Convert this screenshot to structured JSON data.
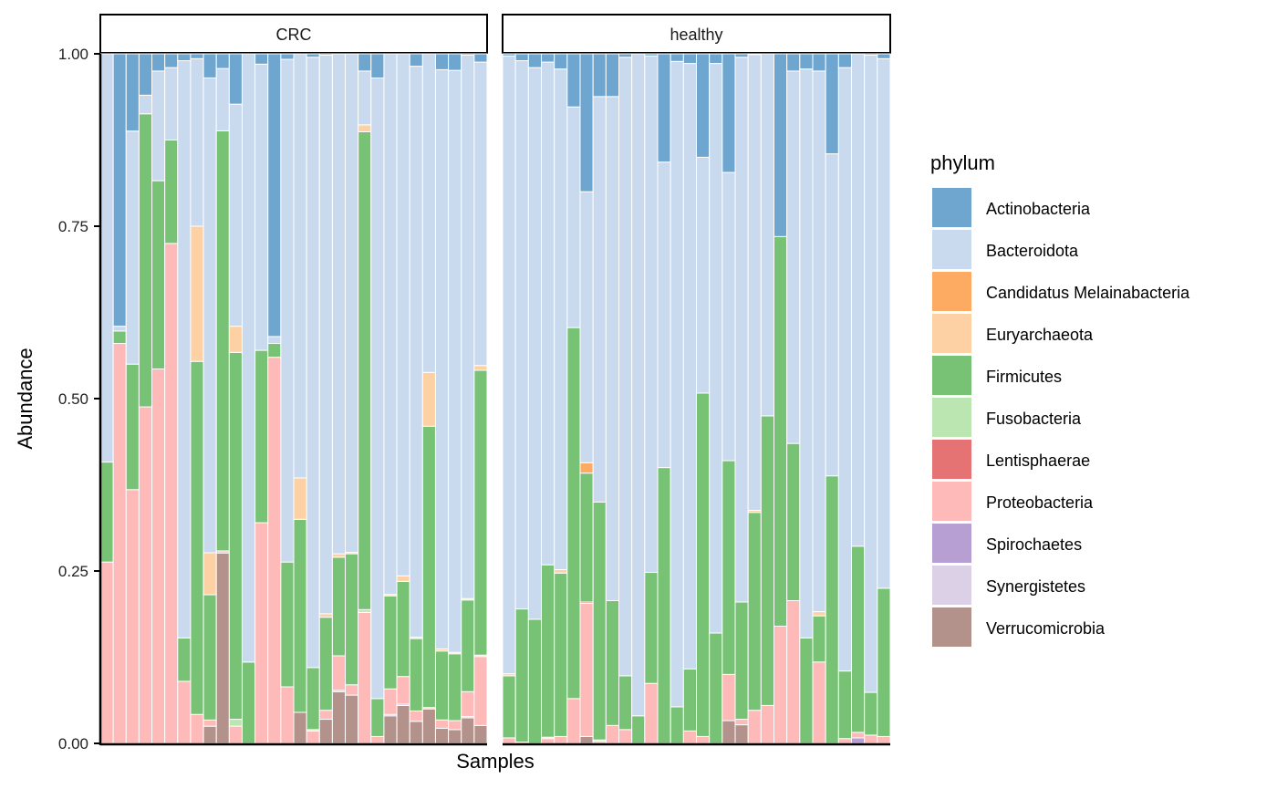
{
  "chart_data": {
    "type": "bar",
    "stacked": true,
    "xlabel": "Samples",
    "ylabel": "Abundance",
    "ylim": [
      0,
      1
    ],
    "yticks": [
      "0.00",
      "0.25",
      "0.50",
      "0.75",
      "1.00"
    ],
    "ytick_values": [
      0,
      0.25,
      0.5,
      0.75,
      1.0
    ],
    "legend": {
      "title": "phylum",
      "position": "right",
      "entries": [
        {
          "name": "Actinobacteria",
          "color": "#6FA6CF"
        },
        {
          "name": "Bacteroidota",
          "color": "#C9D9EE"
        },
        {
          "name": "Candidatus Melainabacteria",
          "color": "#FDAB62"
        },
        {
          "name": "Euryarchaeota",
          "color": "#FDD1A4"
        },
        {
          "name": "Firmicutes",
          "color": "#78C276"
        },
        {
          "name": "Fusobacteria",
          "color": "#BBE6B2"
        },
        {
          "name": "Lentisphaerae",
          "color": "#E57373"
        },
        {
          "name": "Proteobacteria",
          "color": "#FEB9B9"
        },
        {
          "name": "Spirochaetes",
          "color": "#B79ED3"
        },
        {
          "name": "Synergistetes",
          "color": "#DCD0E6"
        },
        {
          "name": "Verrucomicrobia",
          "color": "#B3928C"
        }
      ]
    },
    "stack_order_bottom_to_top": [
      "Verrucomicrobia",
      "Synergistetes",
      "Spirochaetes",
      "Proteobacteria",
      "Lentisphaerae",
      "Fusobacteria",
      "Firmicutes",
      "Euryarchaeota",
      "Candidatus Melainabacteria",
      "Bacteroidota",
      "Actinobacteria"
    ],
    "facets": [
      {
        "label": "CRC",
        "samples": [
          {
            "Proteobacteria": 0.263,
            "Firmicutes": 0.145,
            "Bacteroidota": 0.592,
            "Actinobacteria": 0.0
          },
          {
            "Proteobacteria": 0.58,
            "Firmicutes": 0.018,
            "Bacteroidota": 0.007,
            "Actinobacteria": 0.395
          },
          {
            "Proteobacteria": 0.368,
            "Firmicutes": 0.182,
            "Bacteroidota": 0.338,
            "Actinobacteria": 0.112
          },
          {
            "Proteobacteria": 0.488,
            "Firmicutes": 0.425,
            "Bacteroidota": 0.027,
            "Actinobacteria": 0.06
          },
          {
            "Proteobacteria": 0.543,
            "Firmicutes": 0.273,
            "Bacteroidota": 0.159,
            "Actinobacteria": 0.025
          },
          {
            "Proteobacteria": 0.725,
            "Firmicutes": 0.15,
            "Bacteroidota": 0.105,
            "Actinobacteria": 0.02
          },
          {
            "Proteobacteria": 0.09,
            "Firmicutes": 0.063,
            "Bacteroidota": 0.837,
            "Actinobacteria": 0.01
          },
          {
            "Proteobacteria": 0.042,
            "Firmicutes": 0.512,
            "Euryarchaeota": 0.196,
            "Bacteroidota": 0.243,
            "Actinobacteria": 0.007
          },
          {
            "Verrucomicrobia": 0.025,
            "Proteobacteria": 0.009,
            "Firmicutes": 0.182,
            "Euryarchaeota": 0.061,
            "Bacteroidota": 0.69,
            "Actinobacteria": 0.035
          },
          {
            "Verrucomicrobia": 0.272,
            "Proteobacteria": 0.003,
            "Firmicutes": 0.6,
            "Bacteroidota": 0.089,
            "Actinobacteria": 0.021
          },
          {
            "Proteobacteria": 0.025,
            "Fusobacteria": 0.01,
            "Firmicutes": 0.532,
            "Euryarchaeota": 0.038,
            "Bacteroidota": 0.322,
            "Actinobacteria": 0.073
          },
          {
            "Firmicutes": 0.118,
            "Bacteroidota": 0.882,
            "Actinobacteria": 0.0
          },
          {
            "Proteobacteria": 0.32,
            "Firmicutes": 0.25,
            "Bacteroidota": 0.415,
            "Actinobacteria": 0.015
          },
          {
            "Proteobacteria": 0.56,
            "Firmicutes": 0.02,
            "Bacteroidota": 0.01,
            "Actinobacteria": 0.41
          },
          {
            "Proteobacteria": 0.082,
            "Firmicutes": 0.181,
            "Bacteroidota": 0.729,
            "Actinobacteria": 0.008
          },
          {
            "Verrucomicrobia": 0.045,
            "Firmicutes": 0.28,
            "Euryarchaeota": 0.06,
            "Bacteroidota": 0.615,
            "Actinobacteria": 0.0
          },
          {
            "Proteobacteria": 0.018,
            "Fusobacteria": 0.002,
            "Firmicutes": 0.09,
            "Bacteroidota": 0.885,
            "Actinobacteria": 0.005
          },
          {
            "Verrucomicrobia": 0.035,
            "Proteobacteria": 0.013,
            "Firmicutes": 0.135,
            "Euryarchaeota": 0.005,
            "Bacteroidota": 0.81,
            "Actinobacteria": 0.002
          },
          {
            "Verrucomicrobia": 0.075,
            "Spirochaetes": 0.002,
            "Proteobacteria": 0.05,
            "Firmicutes": 0.143,
            "Euryarchaeota": 0.005,
            "Bacteroidota": 0.725,
            "Actinobacteria": 0.0
          },
          {
            "Verrucomicrobia": 0.07,
            "Proteobacteria": 0.015,
            "Firmicutes": 0.19,
            "Euryarchaeota": 0.002,
            "Bacteroidota": 0.723,
            "Actinobacteria": 0.0
          },
          {
            "Proteobacteria": 0.19,
            "Fusobacteria": 0.004,
            "Firmicutes": 0.693,
            "Euryarchaeota": 0.01,
            "Bacteroidota": 0.078,
            "Actinobacteria": 0.025
          },
          {
            "Proteobacteria": 0.01,
            "Firmicutes": 0.055,
            "Bacteroidota": 0.9,
            "Actinobacteria": 0.035
          },
          {
            "Verrucomicrobia": 0.04,
            "Spirochaetes": 0.002,
            "Proteobacteria": 0.037,
            "Firmicutes": 0.135,
            "Euryarchaeota": 0.002,
            "Bacteroidota": 0.784,
            "Actinobacteria": 0.0
          },
          {
            "Verrucomicrobia": 0.055,
            "Spirochaetes": 0.002,
            "Proteobacteria": 0.04,
            "Firmicutes": 0.138,
            "Euryarchaeota": 0.008,
            "Bacteroidota": 0.757,
            "Actinobacteria": 0.0
          },
          {
            "Verrucomicrobia": 0.032,
            "Proteobacteria": 0.015,
            "Firmicutes": 0.105,
            "Euryarchaeota": 0.002,
            "Bacteroidota": 0.828,
            "Actinobacteria": 0.018
          },
          {
            "Verrucomicrobia": 0.05,
            "Proteobacteria": 0.002,
            "Firmicutes": 0.408,
            "Euryarchaeota": 0.078,
            "Bacteroidota": 0.462,
            "Actinobacteria": 0.0
          },
          {
            "Verrucomicrobia": 0.022,
            "Proteobacteria": 0.012,
            "Firmicutes": 0.1,
            "Euryarchaeota": 0.003,
            "Bacteroidota": 0.84,
            "Actinobacteria": 0.023
          },
          {
            "Verrucomicrobia": 0.02,
            "Proteobacteria": 0.013,
            "Firmicutes": 0.097,
            "Euryarchaeota": 0.002,
            "Bacteroidota": 0.844,
            "Actinobacteria": 0.024
          },
          {
            "Verrucomicrobia": 0.037,
            "Synergistetes": 0.002,
            "Proteobacteria": 0.036,
            "Firmicutes": 0.133,
            "Euryarchaeota": 0.002,
            "Bacteroidota": 0.788,
            "Actinobacteria": 0.002
          },
          {
            "Verrucomicrobia": 0.026,
            "Proteobacteria": 0.1,
            "Fusobacteria": 0.002,
            "Firmicutes": 0.413,
            "Euryarchaeota": 0.007,
            "Bacteroidota": 0.44,
            "Actinobacteria": 0.012
          }
        ]
      },
      {
        "label": "healthy",
        "samples": [
          {
            "Proteobacteria": 0.008,
            "Firmicutes": 0.09,
            "Euryarchaeota": 0.003,
            "Bacteroidota": 0.896,
            "Actinobacteria": 0.003
          },
          {
            "Proteobacteria": 0.002,
            "Firmicutes": 0.193,
            "Bacteroidota": 0.795,
            "Actinobacteria": 0.01
          },
          {
            "Firmicutes": 0.18,
            "Bacteroidota": 0.8,
            "Actinobacteria": 0.02
          },
          {
            "Proteobacteria": 0.007,
            "Fusobacteria": 0.002,
            "Firmicutes": 0.25,
            "Bacteroidota": 0.729,
            "Actinobacteria": 0.012
          },
          {
            "Proteobacteria": 0.01,
            "Firmicutes": 0.237,
            "Euryarchaeota": 0.005,
            "Bacteroidota": 0.726,
            "Actinobacteria": 0.022
          },
          {
            "Proteobacteria": 0.065,
            "Firmicutes": 0.538,
            "Bacteroidota": 0.32,
            "Actinobacteria": 0.077
          },
          {
            "Verrucomicrobia": 0.01,
            "Proteobacteria": 0.193,
            "Lentisphaerae": 0.002,
            "Firmicutes": 0.187,
            "Candidatus Melainabacteria": 0.015,
            "Bacteroidota": 0.393,
            "Actinobacteria": 0.2
          },
          {
            "Proteobacteria": 0.003,
            "Fusobacteria": 0.002,
            "Firmicutes": 0.345,
            "Bacteroidota": 0.588,
            "Actinobacteria": 0.062
          },
          {
            "Proteobacteria": 0.026,
            "Firmicutes": 0.181,
            "Bacteroidota": 0.731,
            "Actinobacteria": 0.062
          },
          {
            "Proteobacteria": 0.02,
            "Firmicutes": 0.078,
            "Bacteroidota": 0.897,
            "Actinobacteria": 0.005
          },
          {
            "Firmicutes": 0.04,
            "Bacteroidota": 0.96,
            "Actinobacteria": 0.0
          },
          {
            "Proteobacteria": 0.087,
            "Firmicutes": 0.161,
            "Bacteroidota": 0.749,
            "Actinobacteria": 0.003
          },
          {
            "Firmicutes": 0.4,
            "Bacteroidota": 0.443,
            "Actinobacteria": 0.157
          },
          {
            "Firmicutes": 0.053,
            "Bacteroidota": 0.936,
            "Actinobacteria": 0.011
          },
          {
            "Proteobacteria": 0.018,
            "Firmicutes": 0.09,
            "Bacteroidota": 0.878,
            "Actinobacteria": 0.014
          },
          {
            "Proteobacteria": 0.01,
            "Firmicutes": 0.498,
            "Bacteroidota": 0.342,
            "Actinobacteria": 0.15
          },
          {
            "Firmicutes": 0.16,
            "Bacteroidota": 0.826,
            "Actinobacteria": 0.014
          },
          {
            "Verrucomicrobia": 0.033,
            "Proteobacteria": 0.067,
            "Firmicutes": 0.31,
            "Bacteroidota": 0.418,
            "Actinobacteria": 0.172
          },
          {
            "Verrucomicrobia": 0.027,
            "Proteobacteria": 0.008,
            "Firmicutes": 0.17,
            "Bacteroidota": 0.79,
            "Actinobacteria": 0.005
          },
          {
            "Proteobacteria": 0.048,
            "Firmicutes": 0.287,
            "Euryarchaeota": 0.003,
            "Bacteroidota": 0.661,
            "Actinobacteria": 0.001
          },
          {
            "Proteobacteria": 0.055,
            "Firmicutes": 0.42,
            "Bacteroidota": 0.525,
            "Actinobacteria": 0.0
          },
          {
            "Proteobacteria": 0.17,
            "Firmicutes": 0.565,
            "Bacteroidota": 0.0,
            "Actinobacteria": 0.265
          },
          {
            "Proteobacteria": 0.207,
            "Firmicutes": 0.228,
            "Bacteroidota": 0.54,
            "Actinobacteria": 0.025
          },
          {
            "Firmicutes": 0.153,
            "Bacteroidota": 0.825,
            "Actinobacteria": 0.022
          },
          {
            "Proteobacteria": 0.118,
            "Firmicutes": 0.067,
            "Euryarchaeota": 0.006,
            "Bacteroidota": 0.784,
            "Actinobacteria": 0.025
          },
          {
            "Firmicutes": 0.388,
            "Bacteroidota": 0.467,
            "Actinobacteria": 0.145
          },
          {
            "Proteobacteria": 0.007,
            "Firmicutes": 0.098,
            "Bacteroidota": 0.875,
            "Actinobacteria": 0.02
          },
          {
            "Spirochaetes": 0.008,
            "Proteobacteria": 0.008,
            "Firmicutes": 0.27,
            "Bacteroidota": 0.714,
            "Actinobacteria": 0.0
          },
          {
            "Proteobacteria": 0.012,
            "Firmicutes": 0.062,
            "Bacteroidota": 0.924,
            "Actinobacteria": 0.002
          },
          {
            "Proteobacteria": 0.01,
            "Firmicutes": 0.215,
            "Bacteroidota": 0.768,
            "Actinobacteria": 0.007
          }
        ]
      }
    ]
  }
}
